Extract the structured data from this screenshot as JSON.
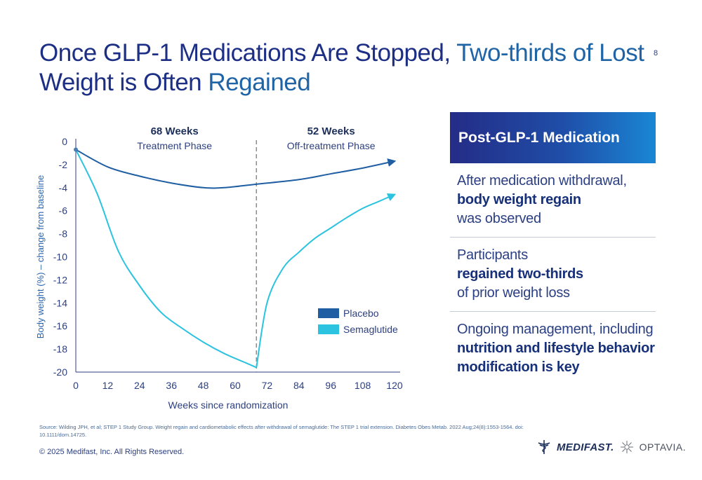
{
  "slide": {
    "title_part1": "Once GLP-1 Medications Are Stopped,",
    "title_part2": "Two-thirds of Lost",
    "title_part3": "Weight is Often",
    "title_part4": "Regained",
    "page_number": "8"
  },
  "colors": {
    "title": "#1c2f85",
    "accent": "#1f64a6",
    "placebo": "#1f5ea2",
    "semaglutide": "#2bc3e0"
  },
  "panel": {
    "header": "Post-GLP-1 Medication",
    "items": [
      {
        "pre": "After medication withdrawal,",
        "bold": "body weight regain",
        "post": "was observed"
      },
      {
        "pre": "Participants",
        "bold": "regained two-thirds",
        "post": "of prior weight loss"
      },
      {
        "pre": "Ongoing management, including",
        "bold": "nutrition and lifestyle behavior modification is key",
        "post": ""
      }
    ]
  },
  "footer": {
    "source": "Source: Wilding JPH, et al; STEP 1 Study Group. Weight regain and cardiometabolic effects after withdrawal of semaglutide: The STEP 1 trial extension. Diabetes Obes Metab. 2022 Aug;24(8):1553-1564. doi: 10.1111/dom.14725.",
    "copyright": "© 2025 Medifast, Inc. All Rights Reserved.",
    "logo_1": "MEDIFAST.",
    "logo_2": "OPTAVIA."
  },
  "chart_data": {
    "type": "line",
    "xlabel": "Weeks since randomization",
    "ylabel": "Body weight (%) – change from baseline",
    "xlim": [
      0,
      120
    ],
    "ylim": [
      -20,
      0
    ],
    "x_ticks": [
      0,
      12,
      24,
      36,
      48,
      60,
      72,
      84,
      96,
      108,
      120
    ],
    "y_ticks": [
      0,
      -2,
      -4,
      -6,
      -8,
      -10,
      -12,
      -14,
      -16,
      -18,
      -20
    ],
    "divider_week": 68,
    "phases": [
      {
        "duration": "68 Weeks",
        "label": "Treatment Phase"
      },
      {
        "duration": "52 Weeks",
        "label": "Off-treatment Phase"
      }
    ],
    "series": [
      {
        "name": "Placebo",
        "points": [
          [
            0,
            -0.7
          ],
          [
            12,
            -2.2
          ],
          [
            24,
            -3.0
          ],
          [
            36,
            -3.6
          ],
          [
            48,
            -4.0
          ],
          [
            56,
            -4.0
          ],
          [
            68,
            -3.7
          ],
          [
            84,
            -3.3
          ],
          [
            96,
            -2.8
          ],
          [
            108,
            -2.3
          ],
          [
            120,
            -1.7
          ]
        ]
      },
      {
        "name": "Semaglutide",
        "points": [
          [
            0,
            -0.7
          ],
          [
            8,
            -4.5
          ],
          [
            16,
            -9.5
          ],
          [
            24,
            -12.5
          ],
          [
            32,
            -14.8
          ],
          [
            40,
            -16.2
          ],
          [
            48,
            -17.4
          ],
          [
            56,
            -18.4
          ],
          [
            64,
            -19.2
          ],
          [
            68,
            -19.6
          ],
          [
            72,
            -14.0
          ],
          [
            78,
            -11.0
          ],
          [
            84,
            -9.6
          ],
          [
            90,
            -8.4
          ],
          [
            96,
            -7.5
          ],
          [
            102,
            -6.6
          ],
          [
            108,
            -5.8
          ],
          [
            114,
            -5.2
          ],
          [
            120,
            -4.6
          ]
        ]
      }
    ]
  }
}
